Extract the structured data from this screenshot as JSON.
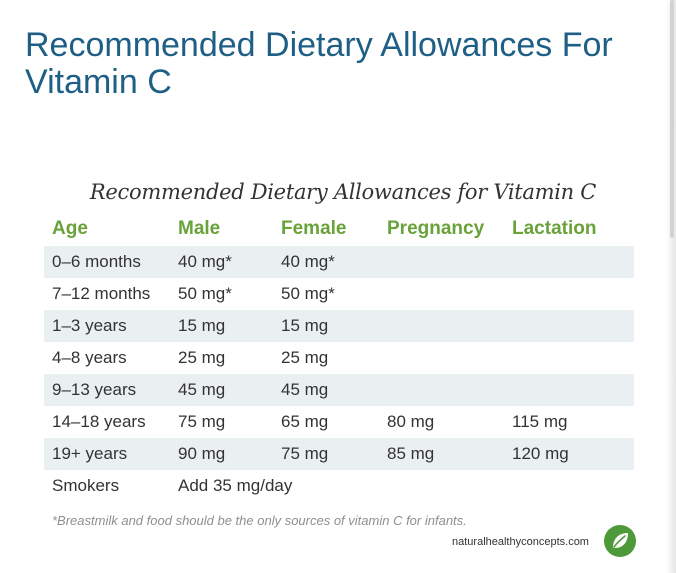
{
  "page_title": "Recommended Dietary Allowances For Vitamin C",
  "table": {
    "title": "Recommended Dietary Allowances for Vitamin C",
    "headers": [
      "Age",
      "Male",
      "Female",
      "Pregnancy",
      "Lactation"
    ],
    "rows": [
      {
        "age": "0–6 months",
        "male": "40 mg*",
        "female": "40 mg*",
        "pregnancy": "",
        "lactation": ""
      },
      {
        "age": "7–12 months",
        "male": "50 mg*",
        "female": "50 mg*",
        "pregnancy": "",
        "lactation": ""
      },
      {
        "age": "1–3 years",
        "male": "15 mg",
        "female": "15 mg",
        "pregnancy": "",
        "lactation": ""
      },
      {
        "age": "4–8 years",
        "male": "25 mg",
        "female": "25 mg",
        "pregnancy": "",
        "lactation": ""
      },
      {
        "age": "9–13 years",
        "male": "45 mg",
        "female": "45 mg",
        "pregnancy": "",
        "lactation": ""
      },
      {
        "age": "14–18 years",
        "male": "75 mg",
        "female": "65 mg",
        "pregnancy": "80 mg",
        "lactation": "115 mg"
      },
      {
        "age": "19+ years",
        "male": "90 mg",
        "female": "75 mg",
        "pregnancy": "85 mg",
        "lactation": "120 mg"
      }
    ],
    "smokers": {
      "age": "Smokers",
      "value": "Add 35 mg/day"
    }
  },
  "footnote": "*Breastmilk and food should be the only sources of vitamin C for infants.",
  "source": "naturalhealthyconcepts.com",
  "logo_icon": "leaf-icon",
  "colors": {
    "title": "#1f5f86",
    "header": "#6aa23a",
    "row_stripe": "#eaf0f1",
    "logo": "#4e9a3a"
  }
}
